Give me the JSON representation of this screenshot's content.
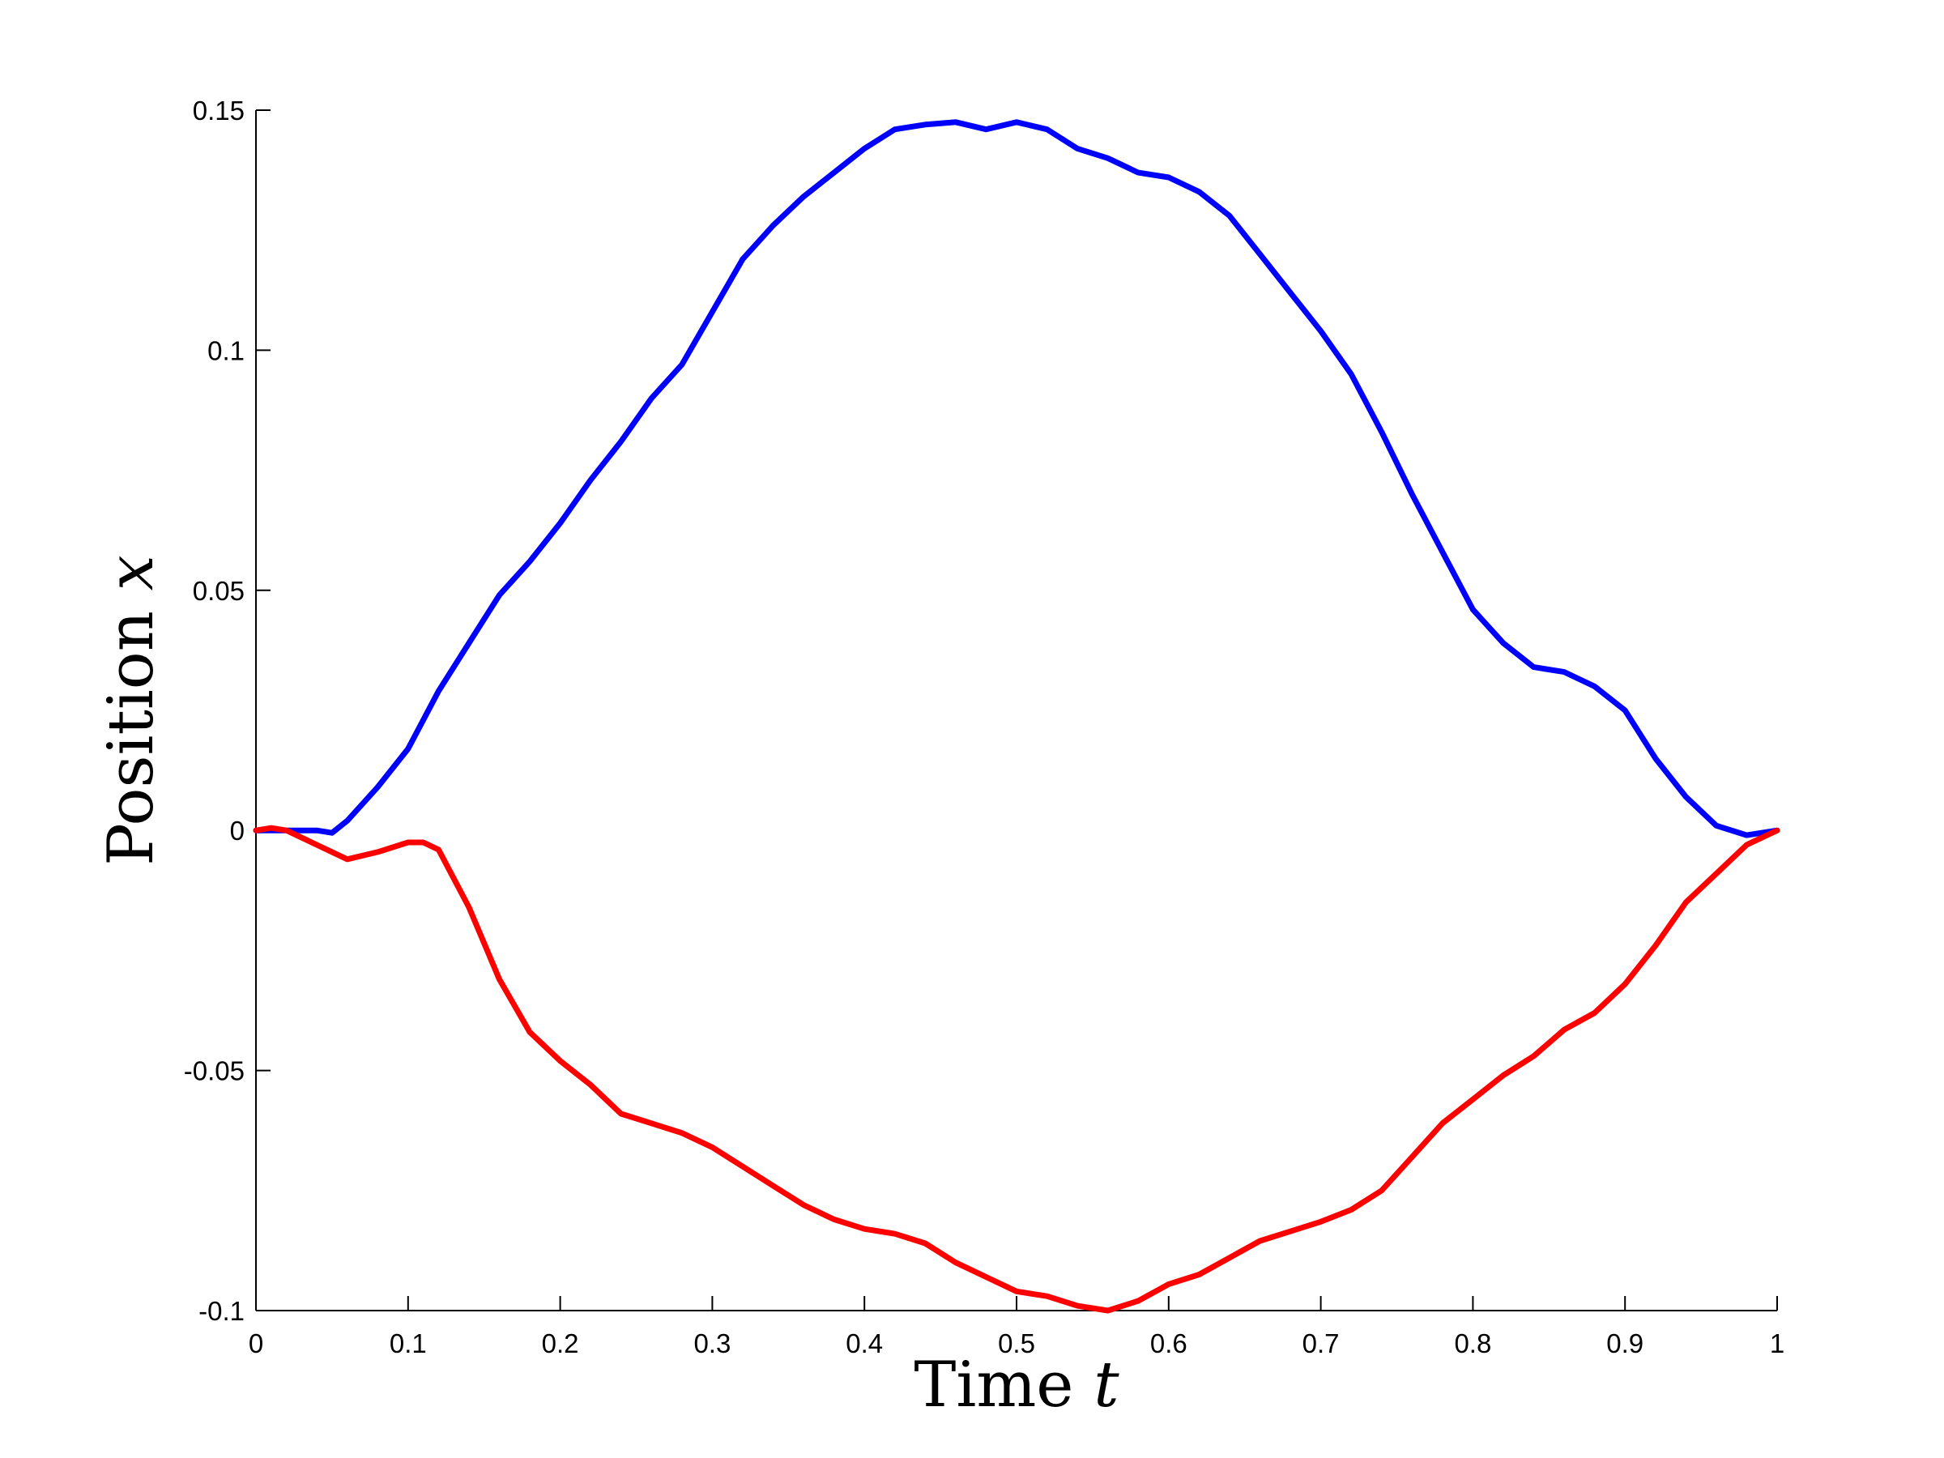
{
  "chart_data": {
    "type": "line",
    "title": "",
    "xlabel": "Time",
    "xlabel_var": "t",
    "ylabel": "Position",
    "ylabel_var": "x",
    "xlim": [
      0,
      1
    ],
    "ylim": [
      -0.1,
      0.15
    ],
    "xticks": [
      0,
      0.1,
      0.2,
      0.3,
      0.4,
      0.5,
      0.6,
      0.7,
      0.8,
      0.9,
      1
    ],
    "xtick_labels": [
      "0",
      "0.1",
      "0.2",
      "0.3",
      "0.4",
      "0.5",
      "0.6",
      "0.7",
      "0.8",
      "0.9",
      "1"
    ],
    "yticks": [
      -0.1,
      -0.05,
      0,
      0.05,
      0.1,
      0.15
    ],
    "ytick_labels": [
      "-0.1",
      "-0.05",
      "0",
      "0.05",
      "0.1",
      "0.15"
    ],
    "grid": false,
    "legend": "none",
    "series": [
      {
        "color": "#0000ff",
        "x": [
          0,
          0.02,
          0.04,
          0.05,
          0.06,
          0.08,
          0.1,
          0.12,
          0.14,
          0.16,
          0.18,
          0.2,
          0.22,
          0.24,
          0.26,
          0.28,
          0.3,
          0.32,
          0.34,
          0.36,
          0.38,
          0.4,
          0.42,
          0.44,
          0.46,
          0.48,
          0.5,
          0.52,
          0.54,
          0.56,
          0.58,
          0.6,
          0.62,
          0.64,
          0.66,
          0.68,
          0.7,
          0.72,
          0.74,
          0.76,
          0.78,
          0.8,
          0.82,
          0.84,
          0.86,
          0.88,
          0.9,
          0.92,
          0.94,
          0.96,
          0.98,
          1
        ],
        "y": [
          0,
          0,
          0,
          -0.0005,
          0.002,
          0.009,
          0.017,
          0.029,
          0.039,
          0.049,
          0.056,
          0.064,
          0.073,
          0.081,
          0.09,
          0.097,
          0.108,
          0.119,
          0.126,
          0.132,
          0.137,
          0.142,
          0.146,
          0.147,
          0.1475,
          0.146,
          0.1475,
          0.146,
          0.142,
          0.14,
          0.137,
          0.136,
          0.133,
          0.128,
          0.12,
          0.112,
          0.104,
          0.095,
          0.083,
          0.07,
          0.058,
          0.046,
          0.039,
          0.034,
          0.033,
          0.03,
          0.025,
          0.015,
          0.007,
          0.001,
          -0.001,
          0
        ]
      },
      {
        "color": "#ff0000",
        "x": [
          0,
          0.01,
          0.02,
          0.04,
          0.06,
          0.08,
          0.1,
          0.11,
          0.12,
          0.14,
          0.16,
          0.18,
          0.2,
          0.22,
          0.24,
          0.26,
          0.28,
          0.3,
          0.32,
          0.34,
          0.36,
          0.38,
          0.4,
          0.42,
          0.44,
          0.46,
          0.48,
          0.5,
          0.52,
          0.54,
          0.56,
          0.58,
          0.6,
          0.62,
          0.64,
          0.66,
          0.68,
          0.7,
          0.72,
          0.74,
          0.76,
          0.78,
          0.8,
          0.82,
          0.84,
          0.86,
          0.88,
          0.9,
          0.92,
          0.94,
          0.96,
          0.98,
          1
        ],
        "y": [
          0,
          0.0005,
          0,
          -0.003,
          -0.006,
          -0.0045,
          -0.0025,
          -0.0025,
          -0.004,
          -0.016,
          -0.031,
          -0.042,
          -0.048,
          -0.053,
          -0.059,
          -0.061,
          -0.063,
          -0.066,
          -0.07,
          -0.074,
          -0.078,
          -0.081,
          -0.083,
          -0.084,
          -0.086,
          -0.09,
          -0.093,
          -0.096,
          -0.097,
          -0.099,
          -0.1,
          -0.098,
          -0.0945,
          -0.0925,
          -0.089,
          -0.0855,
          -0.0835,
          -0.0815,
          -0.079,
          -0.075,
          -0.068,
          -0.061,
          -0.056,
          -0.051,
          -0.047,
          -0.0415,
          -0.038,
          -0.032,
          -0.024,
          -0.015,
          -0.009,
          -0.003,
          0
        ]
      }
    ]
  }
}
